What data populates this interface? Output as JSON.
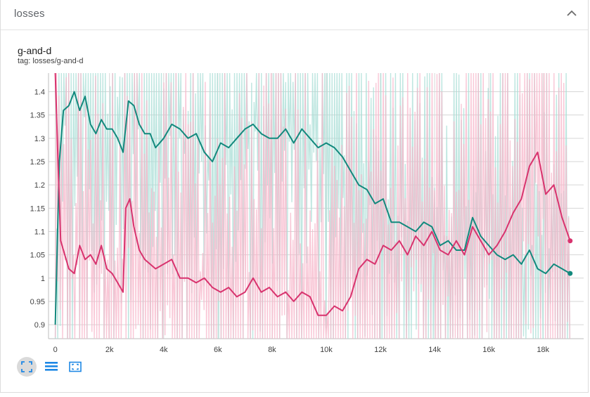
{
  "card": {
    "header_title": "losses",
    "collapse_icon": "chevron-up-icon",
    "chart_title": "g-and-d",
    "chart_tag": "tag: losses/g-and-d"
  },
  "toolbar": {
    "buttons": [
      {
        "icon": "fit-domain-icon",
        "active": true
      },
      {
        "icon": "toggle-log-scale-icon",
        "active": false
      },
      {
        "icon": "fit-to-data-icon",
        "active": false
      }
    ]
  },
  "colors": {
    "teal": "#12897d",
    "teal_raw": "#a8ddd6",
    "pink": "#d8336e",
    "pink_raw": "#f7b6c9",
    "grid": "#d6d6d6",
    "axis": "#bdbdbd"
  },
  "chart_data": {
    "type": "line",
    "title": "g-and-d",
    "xlabel": "",
    "ylabel": "",
    "x_ticks": [
      "0",
      "2k",
      "4k",
      "6k",
      "8k",
      "10k",
      "12k",
      "14k",
      "16k",
      "18k"
    ],
    "x_tick_values": [
      0,
      2000,
      4000,
      6000,
      8000,
      10000,
      12000,
      14000,
      16000,
      18000
    ],
    "y_ticks": [
      "0.9",
      "0.95",
      "1",
      "1.05",
      "1.1",
      "1.15",
      "1.2",
      "1.25",
      "1.3",
      "1.35",
      "1.4"
    ],
    "y_tick_values": [
      0.9,
      0.95,
      1.0,
      1.05,
      1.1,
      1.15,
      1.2,
      1.25,
      1.3,
      1.35,
      1.4
    ],
    "xlim": [
      -250,
      19500
    ],
    "ylim": [
      0.87,
      1.44
    ],
    "grid": true,
    "smoothing": true,
    "series": [
      {
        "color": "#12897d",
        "raw_color": "#a8ddd6",
        "x": [
          0,
          150,
          300,
          500,
          700,
          900,
          1100,
          1300,
          1500,
          1700,
          1900,
          2100,
          2300,
          2500,
          2700,
          2900,
          3100,
          3300,
          3500,
          3700,
          4000,
          4300,
          4600,
          4900,
          5200,
          5500,
          5800,
          6100,
          6400,
          6700,
          7000,
          7300,
          7600,
          7900,
          8200,
          8500,
          8800,
          9100,
          9400,
          9700,
          10000,
          10300,
          10600,
          10900,
          11200,
          11500,
          11800,
          12100,
          12400,
          12700,
          13000,
          13300,
          13600,
          13900,
          14200,
          14500,
          14800,
          15100,
          15400,
          15700,
          16000,
          16300,
          16600,
          16900,
          17200,
          17500,
          17800,
          18100,
          18400,
          18700,
          19000
        ],
        "y": [
          0.9,
          1.25,
          1.36,
          1.37,
          1.4,
          1.36,
          1.39,
          1.33,
          1.31,
          1.34,
          1.32,
          1.32,
          1.3,
          1.27,
          1.38,
          1.37,
          1.33,
          1.31,
          1.31,
          1.28,
          1.3,
          1.33,
          1.32,
          1.3,
          1.31,
          1.27,
          1.25,
          1.29,
          1.28,
          1.3,
          1.32,
          1.33,
          1.31,
          1.3,
          1.3,
          1.32,
          1.29,
          1.32,
          1.3,
          1.28,
          1.29,
          1.28,
          1.26,
          1.23,
          1.2,
          1.19,
          1.16,
          1.17,
          1.12,
          1.12,
          1.11,
          1.1,
          1.12,
          1.11,
          1.07,
          1.08,
          1.06,
          1.06,
          1.13,
          1.09,
          1.07,
          1.05,
          1.04,
          1.05,
          1.03,
          1.06,
          1.02,
          1.01,
          1.03,
          1.02,
          1.01
        ]
      },
      {
        "color": "#d8336e",
        "raw_color": "#f7b6c9",
        "x": [
          0,
          100,
          200,
          350,
          500,
          700,
          900,
          1100,
          1300,
          1500,
          1700,
          1900,
          2100,
          2300,
          2500,
          2600,
          2750,
          2900,
          3100,
          3300,
          3500,
          3700,
          4000,
          4300,
          4600,
          4900,
          5200,
          5500,
          5800,
          6100,
          6400,
          6700,
          7000,
          7300,
          7600,
          7900,
          8200,
          8500,
          8800,
          9100,
          9400,
          9700,
          10000,
          10300,
          10600,
          10900,
          11200,
          11500,
          11800,
          12100,
          12400,
          12700,
          13000,
          13300,
          13600,
          13900,
          14200,
          14500,
          14800,
          15100,
          15400,
          15700,
          16000,
          16300,
          16600,
          16900,
          17200,
          17500,
          17800,
          18100,
          18400,
          18700,
          19000
        ],
        "y": [
          1.44,
          1.25,
          1.08,
          1.05,
          1.02,
          1.01,
          1.07,
          1.04,
          1.05,
          1.03,
          1.07,
          1.02,
          1.01,
          0.99,
          0.97,
          1.15,
          1.17,
          1.11,
          1.06,
          1.04,
          1.03,
          1.02,
          1.03,
          1.04,
          1.0,
          1.0,
          0.99,
          1.0,
          0.98,
          0.97,
          0.98,
          0.96,
          0.97,
          1.0,
          0.97,
          0.98,
          0.96,
          0.97,
          0.95,
          0.97,
          0.96,
          0.92,
          0.92,
          0.94,
          0.93,
          0.96,
          1.02,
          1.04,
          1.03,
          1.07,
          1.06,
          1.08,
          1.05,
          1.09,
          1.07,
          1.1,
          1.06,
          1.05,
          1.08,
          1.05,
          1.11,
          1.08,
          1.05,
          1.07,
          1.1,
          1.14,
          1.17,
          1.24,
          1.27,
          1.18,
          1.2,
          1.13,
          1.08
        ]
      }
    ]
  }
}
